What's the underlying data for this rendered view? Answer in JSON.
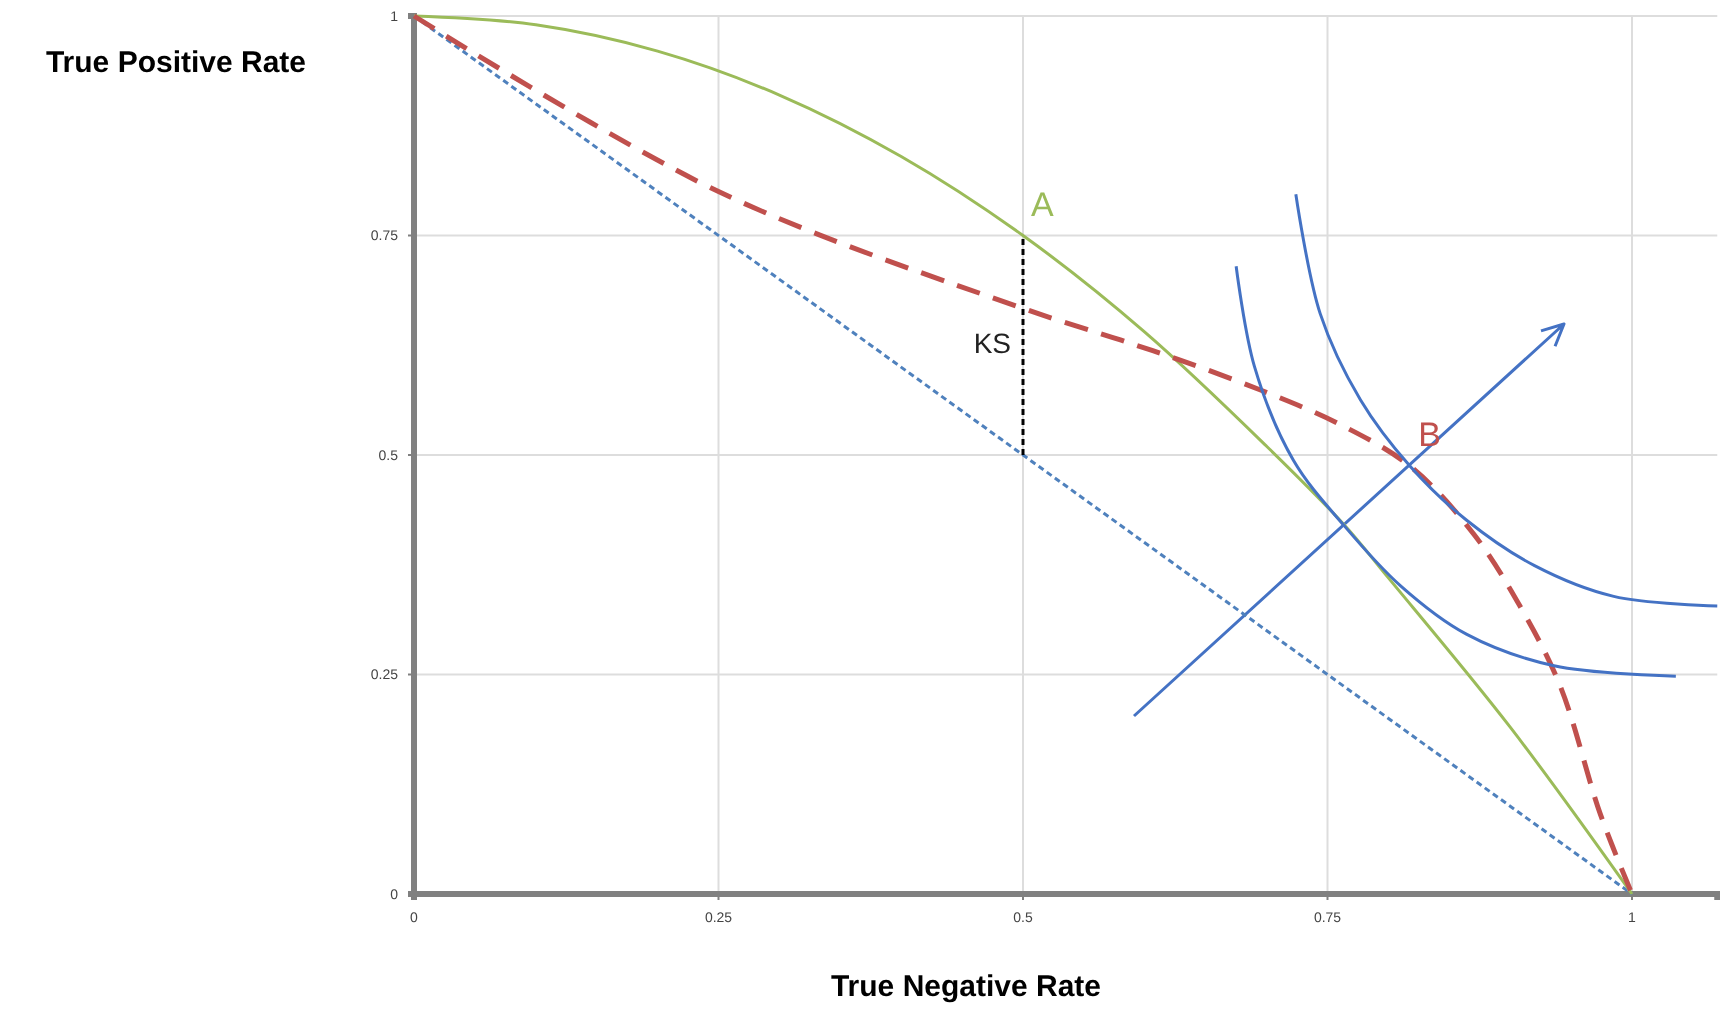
{
  "chart_data": {
    "type": "line",
    "xlabel": "True Negative Rate",
    "ylabel": "True Positive Rate",
    "xlim": [
      0,
      1.07
    ],
    "ylim": [
      0,
      1
    ],
    "xticks": [
      0,
      0.25,
      0.5,
      0.75,
      1
    ],
    "yticks": [
      0,
      0.25,
      0.5,
      0.75,
      1
    ],
    "grid": true,
    "annotations": [
      {
        "text": "KS",
        "x": 0.5,
        "y": 0.63
      }
    ],
    "series": [
      {
        "x": [
          0,
          1
        ],
        "values": [
          1,
          0
        ],
        "color": "#4f81bd",
        "line_style": "dotted"
      },
      {
        "name": "A",
        "x": [
          0,
          0.1,
          0.2,
          0.3,
          0.4,
          0.5,
          0.6,
          0.7,
          0.764,
          0.8,
          0.9,
          1
        ],
        "values": [
          1,
          0.99,
          0.96,
          0.91,
          0.84,
          0.75,
          0.64,
          0.51,
          0.42,
          0.36,
          0.19,
          0
        ],
        "color": "#9bbb59",
        "line_style": "solid"
      },
      {
        "name": "B",
        "x": [
          0,
          0.25,
          0.5,
          0.58,
          0.629,
          0.695,
          0.76,
          0.818,
          0.87,
          0.908,
          0.941,
          0.974,
          1
        ],
        "values": [
          1,
          0.8,
          0.667,
          0.631,
          0.608,
          0.574,
          0.535,
          0.487,
          0.41,
          0.328,
          0.237,
          0.091,
          0
        ],
        "color": "#c0504d",
        "line_style": "dashed"
      },
      {
        "x": [
          0.5,
          0.5
        ],
        "values": [
          0.5,
          0.75
        ],
        "color": "#000000",
        "line_style": "dotted"
      },
      {
        "x": [
          0.675,
          0.69,
          0.722,
          0.764,
          0.81,
          0.864,
          0.936,
          1.036
        ],
        "values": [
          0.715,
          0.601,
          0.494,
          0.419,
          0.351,
          0.296,
          0.26,
          0.248
        ],
        "color": "#4472c4",
        "line_style": "solid"
      },
      {
        "x": [
          0.724,
          0.744,
          0.777,
          0.818,
          0.864,
          0.92,
          0.985,
          1.07
        ],
        "values": [
          0.797,
          0.661,
          0.563,
          0.487,
          0.426,
          0.374,
          0.339,
          0.328
        ],
        "color": "#4472c4",
        "line_style": "solid"
      }
    ]
  }
}
